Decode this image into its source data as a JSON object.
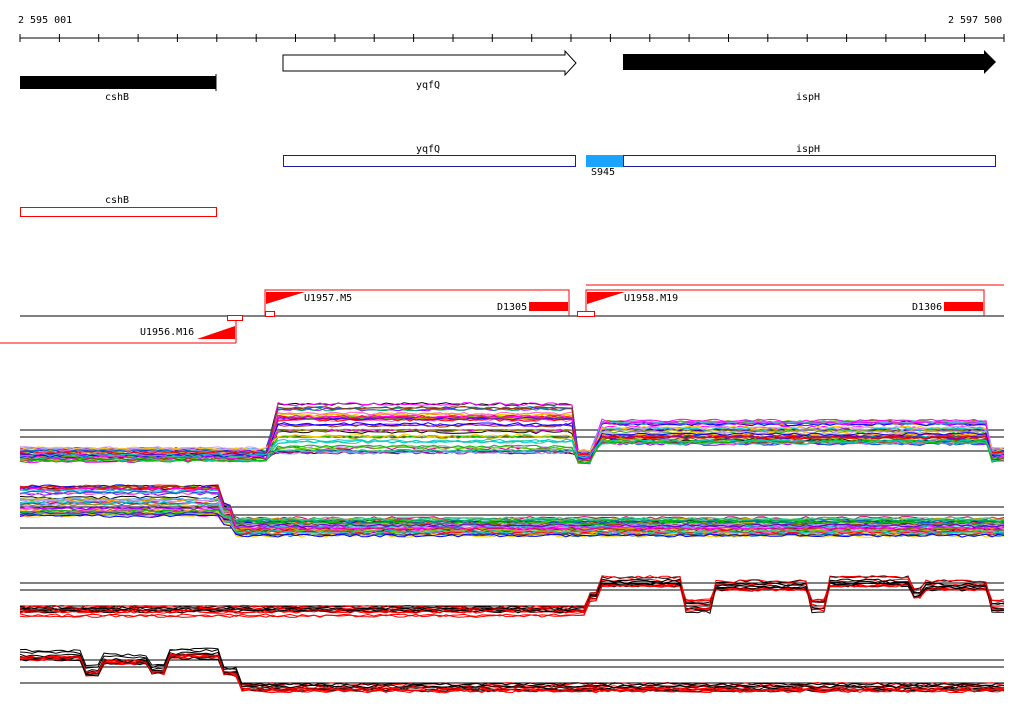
{
  "ruler": {
    "start_label": "2 595 001",
    "end_label": "2 597 500"
  },
  "genes_top": [
    {
      "name": "cshB",
      "style": "filled",
      "direction": "left"
    },
    {
      "name": "yqfQ",
      "style": "outline",
      "direction": "right"
    },
    {
      "name": "ispH",
      "style": "filled",
      "direction": "right"
    }
  ],
  "annotations_blue": [
    {
      "name": "yqfQ"
    },
    {
      "name": "ispH"
    }
  ],
  "feature_s": {
    "name": "S945",
    "color": "#1aa3ff"
  },
  "annotations_red": [
    {
      "name": "cshB"
    }
  ],
  "transcripts": [
    {
      "name": "U1956.M16"
    },
    {
      "name": "U1957.M5"
    },
    {
      "name": "U1958.M19"
    }
  ],
  "downregs": [
    {
      "name": "D1305"
    },
    {
      "name": "D1306"
    }
  ],
  "colors": {
    "accent_red": "#ff0000",
    "accent_blue": "#1a1aa6",
    "feature_blue": "#1aa3ff"
  }
}
